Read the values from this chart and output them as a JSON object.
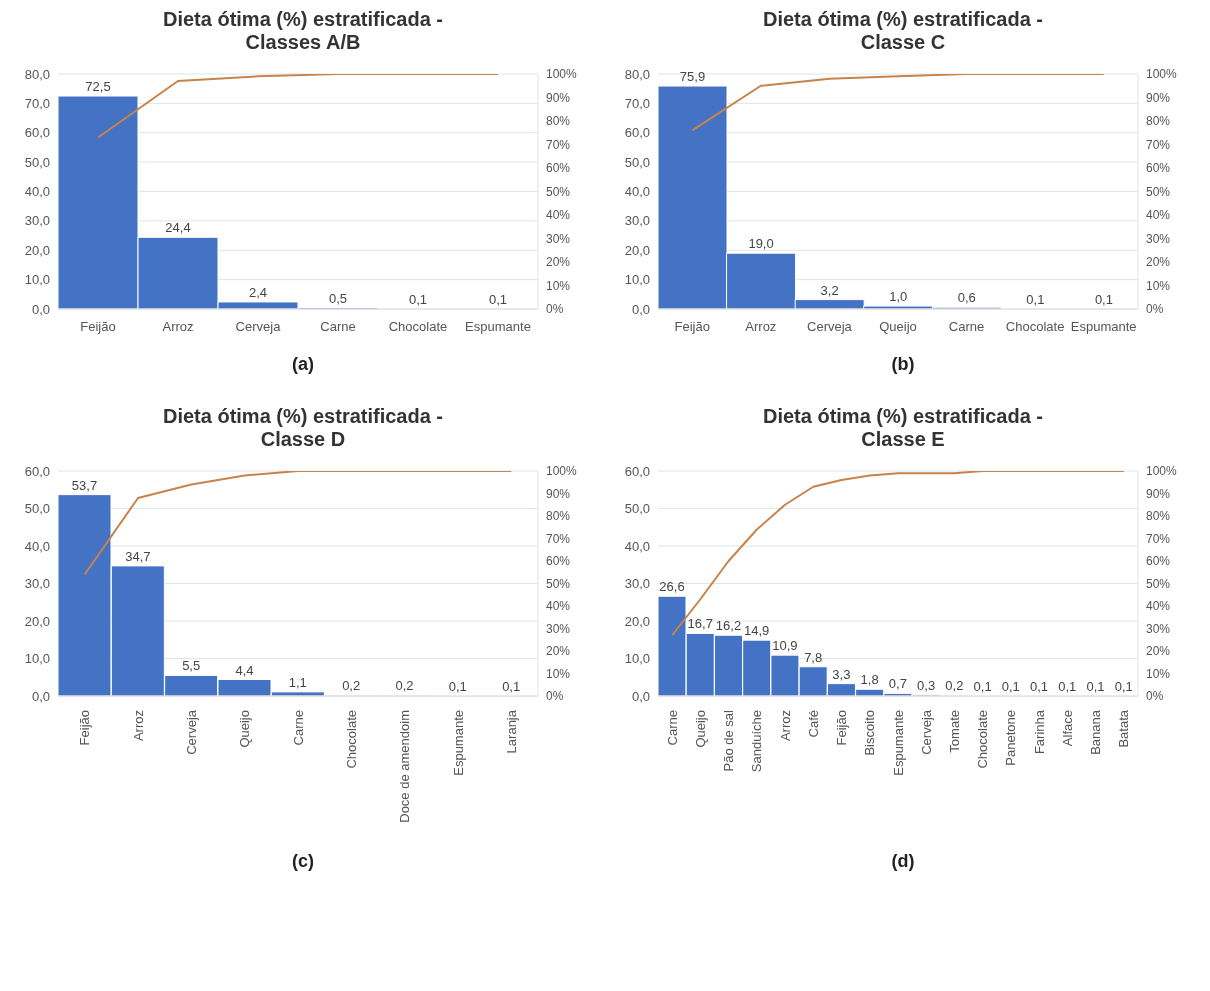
{
  "chart_data": [
    {
      "type": "bar",
      "title": "Dieta ótima (%) estratificada - Classes A/B",
      "annotations": [
        "(a)"
      ],
      "categories": [
        "Feijão",
        "Arroz",
        "Cerveja",
        "Carne",
        "Chocolate",
        "Espumante"
      ],
      "series": [
        {
          "color": "#4472c4",
          "values": [
            72.5,
            24.4,
            2.4,
            0.5,
            0.1,
            0.1
          ],
          "value_labels": [
            "72,5",
            "24,4",
            "2,4",
            "0,5",
            "0,1",
            "0,1"
          ]
        },
        {
          "type": "line",
          "axis": "y2",
          "color": "#c8834a",
          "values": [
            73,
            97,
            99,
            100,
            100,
            100
          ]
        }
      ],
      "ylim": [
        0,
        80
      ],
      "yticks": [
        {
          "value": 0,
          "label": "0,0"
        },
        {
          "value": 10,
          "label": "10,0"
        },
        {
          "value": 20,
          "label": "20,0"
        },
        {
          "value": 30,
          "label": "30,0"
        },
        {
          "value": 40,
          "label": "40,0"
        },
        {
          "value": 50,
          "label": "50,0"
        },
        {
          "value": 60,
          "label": "60,0"
        },
        {
          "value": 70,
          "label": "70,0"
        },
        {
          "value": 80,
          "label": "80,0"
        }
      ],
      "y2lim": [
        0,
        100
      ],
      "y2ticks": [
        {
          "value": 0,
          "label": "0%"
        },
        {
          "value": 10,
          "label": "10%"
        },
        {
          "value": 20,
          "label": "20%"
        },
        {
          "value": 30,
          "label": "30%"
        },
        {
          "value": 40,
          "label": "40%"
        },
        {
          "value": 50,
          "label": "50%"
        },
        {
          "value": 60,
          "label": "60%"
        },
        {
          "value": 70,
          "label": "70%"
        },
        {
          "value": 80,
          "label": "80%"
        },
        {
          "value": 90,
          "label": "90%"
        },
        {
          "value": 100,
          "label": "100%"
        }
      ],
      "grid": "y",
      "marker": "none",
      "line_style": "solid"
    },
    {
      "type": "bar",
      "title": "Dieta ótima (%) estratificada - Classe C",
      "annotations": [
        "(b)"
      ],
      "categories": [
        "Feijão",
        "Arroz",
        "Cerveja",
        "Queijo",
        "Carne",
        "Chocolate",
        "Espumante"
      ],
      "series": [
        {
          "color": "#4472c4",
          "values": [
            75.9,
            19.0,
            3.2,
            1.0,
            0.6,
            0.1,
            0.1
          ],
          "value_labels": [
            "75,9",
            "19,0",
            "3,2",
            "1,0",
            "0,6",
            "0,1",
            "0,1"
          ]
        },
        {
          "type": "line",
          "axis": "y2",
          "color": "#c8834a",
          "values": [
            76,
            95,
            98,
            99,
            100,
            100,
            100
          ]
        }
      ],
      "ylim": [
        0,
        80
      ],
      "yticks": [
        {
          "value": 0,
          "label": "0,0"
        },
        {
          "value": 10,
          "label": "10,0"
        },
        {
          "value": 20,
          "label": "20,0"
        },
        {
          "value": 30,
          "label": "30,0"
        },
        {
          "value": 40,
          "label": "40,0"
        },
        {
          "value": 50,
          "label": "50,0"
        },
        {
          "value": 60,
          "label": "60,0"
        },
        {
          "value": 70,
          "label": "70,0"
        },
        {
          "value": 80,
          "label": "80,0"
        }
      ],
      "y2lim": [
        0,
        100
      ],
      "y2ticks": [
        {
          "value": 0,
          "label": "0%"
        },
        {
          "value": 10,
          "label": "10%"
        },
        {
          "value": 20,
          "label": "20%"
        },
        {
          "value": 30,
          "label": "30%"
        },
        {
          "value": 40,
          "label": "40%"
        },
        {
          "value": 50,
          "label": "50%"
        },
        {
          "value": 60,
          "label": "60%"
        },
        {
          "value": 70,
          "label": "70%"
        },
        {
          "value": 80,
          "label": "80%"
        },
        {
          "value": 90,
          "label": "90%"
        },
        {
          "value": 100,
          "label": "100%"
        }
      ],
      "grid": "y",
      "marker": "none",
      "line_style": "solid"
    },
    {
      "type": "bar",
      "title": "Dieta ótima (%) estratificada - Classe D",
      "annotations": [
        "(c)"
      ],
      "categories": [
        "Feijão",
        "Arroz",
        "Cerveja",
        "Queijo",
        "Carne",
        "Chocolate",
        "Doce de amendoim",
        "Espumante",
        "Laranja"
      ],
      "series": [
        {
          "color": "#4472c4",
          "values": [
            53.7,
            34.7,
            5.5,
            4.4,
            1.1,
            0.2,
            0.2,
            0.1,
            0.1
          ],
          "value_labels": [
            "53,7",
            "34,7",
            "5,5",
            "4,4",
            "1,1",
            "0,2",
            "0,2",
            "0,1",
            "0,1"
          ]
        },
        {
          "type": "line",
          "axis": "y2",
          "color": "#c8834a",
          "values": [
            54,
            88,
            94,
            98,
            100,
            100,
            100,
            100,
            100
          ]
        }
      ],
      "ylim": [
        0,
        60
      ],
      "yticks": [
        {
          "value": 0,
          "label": "0,0"
        },
        {
          "value": 10,
          "label": "10,0"
        },
        {
          "value": 20,
          "label": "20,0"
        },
        {
          "value": 30,
          "label": "30,0"
        },
        {
          "value": 40,
          "label": "40,0"
        },
        {
          "value": 50,
          "label": "50,0"
        },
        {
          "value": 60,
          "label": "60,0"
        }
      ],
      "y2lim": [
        0,
        100
      ],
      "y2ticks": [
        {
          "value": 0,
          "label": "0%"
        },
        {
          "value": 10,
          "label": "10%"
        },
        {
          "value": 20,
          "label": "20%"
        },
        {
          "value": 30,
          "label": "30%"
        },
        {
          "value": 40,
          "label": "40%"
        },
        {
          "value": 50,
          "label": "50%"
        },
        {
          "value": 60,
          "label": "60%"
        },
        {
          "value": 70,
          "label": "70%"
        },
        {
          "value": 80,
          "label": "80%"
        },
        {
          "value": 90,
          "label": "90%"
        },
        {
          "value": 100,
          "label": "100%"
        }
      ],
      "grid": "y",
      "marker": "none",
      "line_style": "solid"
    },
    {
      "type": "bar",
      "title": "Dieta ótima (%) estratificada - Classe E",
      "annotations": [
        "(d)"
      ],
      "categories": [
        "Carne",
        "Queijo",
        "Pão de sal",
        "Sanduíche",
        "Arroz",
        "Café",
        "Feijão",
        "Biscoito",
        "Espumante",
        "Cerveja",
        "Tomate",
        "Chocolate",
        "Panetone",
        "Farinha",
        "Alface",
        "Banana",
        "Batata"
      ],
      "series": [
        {
          "color": "#4472c4",
          "values": [
            26.6,
            16.7,
            16.2,
            14.9,
            10.9,
            7.8,
            3.3,
            1.8,
            0.7,
            0.3,
            0.2,
            0.1,
            0.1,
            0.1,
            0.1,
            0.1,
            0.1
          ],
          "value_labels": [
            "26,6",
            "16,7",
            "16,2",
            "14,9",
            "10,9",
            "7,8",
            "3,3",
            "1,8",
            "0,7",
            "0,3",
            "0,2",
            "0,1",
            "0,1",
            "0,1",
            "0,1",
            "0,1",
            "0,1"
          ]
        },
        {
          "type": "line",
          "axis": "y2",
          "color": "#c8834a",
          "values": [
            27,
            43,
            60,
            74,
            85,
            93,
            96,
            98,
            99,
            99,
            99,
            100,
            100,
            100,
            100,
            100,
            100
          ]
        }
      ],
      "ylim": [
        0,
        60
      ],
      "yticks": [
        {
          "value": 0,
          "label": "0,0"
        },
        {
          "value": 10,
          "label": "10,0"
        },
        {
          "value": 20,
          "label": "20,0"
        },
        {
          "value": 30,
          "label": "30,0"
        },
        {
          "value": 40,
          "label": "40,0"
        },
        {
          "value": 50,
          "label": "50,0"
        },
        {
          "value": 60,
          "label": "60,0"
        }
      ],
      "y2lim": [
        0,
        100
      ],
      "y2ticks": [
        {
          "value": 0,
          "label": "0%"
        },
        {
          "value": 10,
          "label": "10%"
        },
        {
          "value": 20,
          "label": "20%"
        },
        {
          "value": 30,
          "label": "30%"
        },
        {
          "value": 40,
          "label": "40%"
        },
        {
          "value": 50,
          "label": "50%"
        },
        {
          "value": 60,
          "label": "60%"
        },
        {
          "value": 70,
          "label": "70%"
        },
        {
          "value": 80,
          "label": "80%"
        },
        {
          "value": 90,
          "label": "90%"
        },
        {
          "value": 100,
          "label": "100%"
        }
      ],
      "grid": "y",
      "marker": "none",
      "line_style": "solid"
    }
  ]
}
